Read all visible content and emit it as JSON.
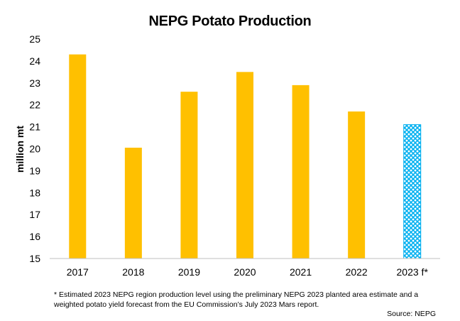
{
  "chart_data": {
    "type": "bar",
    "title": "NEPG Potato Production",
    "ylabel": "million mt",
    "xlabel": "",
    "categories": [
      "2017",
      "2018",
      "2019",
      "2020",
      "2021",
      "2022",
      "2023 f*"
    ],
    "values": [
      24.3,
      20.05,
      22.6,
      23.5,
      22.9,
      21.7,
      21.1
    ],
    "ylim": [
      15,
      25
    ],
    "yticks": [
      15,
      16,
      17,
      18,
      19,
      20,
      21,
      22,
      23,
      24,
      25
    ],
    "grid": false,
    "legend": "none",
    "colors": {
      "bar": "#FFC000",
      "forecast_bar": "#00B0F0",
      "axis": "#BFBFBF"
    },
    "forecast_index": 6
  },
  "footnote": "* Estimated 2023 NEPG region production level using the preliminary NEPG 2023 planted area estimate and a weighted potato yield forecast from the EU Commission’s July 2023 Mars report.",
  "source": "Source: NEPG"
}
